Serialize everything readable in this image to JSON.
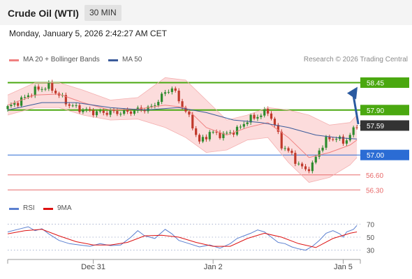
{
  "header": {
    "title": "Crude Oil (WTI)",
    "interval": "30 MIN",
    "datetime": "Monday, January 5, 2026 2:42:27 AM CET"
  },
  "credit": "Research © 2026 Trading Central",
  "colors": {
    "bollinger_line": "#f08080",
    "bollinger_fill": "#fcd6d6",
    "ma50": "#3a5b9a",
    "resistance": "#4aa810",
    "support_blue": "#2b6cd4",
    "support_red": "#e86a6a",
    "current": "#333333",
    "candle_up": "#2e8b2e",
    "candle_down": "#c0392b",
    "arrow": "#2a5aa0",
    "rsi": "#5a7fd0",
    "rsi_ma": "#dd1111"
  },
  "chart_data": [
    {
      "type": "candlestick",
      "legend": [
        {
          "name": "MA 20 + Bollinger Bands",
          "color": "#f08080"
        },
        {
          "name": "MA 50",
          "color": "#3a5b9a"
        }
      ],
      "ylim": [
        56.15,
        58.75
      ],
      "levels": [
        {
          "value": 58.45,
          "label": "58.45",
          "kind": "resistance"
        },
        {
          "value": 57.9,
          "label": "57.90",
          "kind": "resistance"
        },
        {
          "value": 57.59,
          "label": "57.59",
          "kind": "current"
        },
        {
          "value": 57.0,
          "label": "57.00",
          "kind": "support_blue"
        },
        {
          "value": 56.6,
          "label": "56.60",
          "kind": "support_red"
        },
        {
          "value": 56.3,
          "label": "56.30",
          "kind": "support_red"
        }
      ],
      "x_labels": [
        "Dec 31",
        "Jan 2",
        "Jan 5"
      ],
      "x_label_index": [
        25,
        60,
        98
      ],
      "close_path": [
        [
          0,
          57.95
        ],
        [
          4,
          58.1
        ],
        [
          8,
          58.3
        ],
        [
          12,
          58.38
        ],
        [
          15,
          58.2
        ],
        [
          18,
          58.0
        ],
        [
          22,
          57.9
        ],
        [
          26,
          57.85
        ],
        [
          30,
          57.86
        ],
        [
          34,
          57.85
        ],
        [
          38,
          57.9
        ],
        [
          42,
          57.95
        ],
        [
          46,
          58.25
        ],
        [
          48,
          58.35
        ],
        [
          50,
          58.1
        ],
        [
          53,
          57.75
        ],
        [
          56,
          57.25
        ],
        [
          59,
          57.45
        ],
        [
          63,
          57.4
        ],
        [
          67,
          57.5
        ],
        [
          70,
          57.7
        ],
        [
          73,
          57.78
        ],
        [
          76,
          57.88
        ],
        [
          78,
          57.6
        ],
        [
          80,
          57.2
        ],
        [
          83,
          57.0
        ],
        [
          85,
          56.8
        ],
        [
          87,
          56.7
        ],
        [
          89,
          56.8
        ],
        [
          91,
          57.1
        ],
        [
          93,
          57.3
        ],
        [
          96,
          57.35
        ],
        [
          98,
          57.25
        ],
        [
          100,
          57.4
        ],
        [
          102,
          57.59
        ]
      ],
      "ma20": [
        [
          0,
          58.0
        ],
        [
          8,
          58.2
        ],
        [
          15,
          58.22
        ],
        [
          22,
          58.05
        ],
        [
          30,
          57.9
        ],
        [
          38,
          57.92
        ],
        [
          46,
          58.0
        ],
        [
          52,
          57.95
        ],
        [
          58,
          57.55
        ],
        [
          64,
          57.4
        ],
        [
          70,
          57.55
        ],
        [
          76,
          57.65
        ],
        [
          82,
          57.35
        ],
        [
          88,
          56.95
        ],
        [
          94,
          57.05
        ],
        [
          100,
          57.2
        ],
        [
          102,
          57.3
        ]
      ],
      "bollinger_upper": [
        [
          0,
          58.2
        ],
        [
          8,
          58.45
        ],
        [
          15,
          58.45
        ],
        [
          22,
          58.3
        ],
        [
          30,
          58.1
        ],
        [
          38,
          58.15
        ],
        [
          46,
          58.55
        ],
        [
          52,
          58.5
        ],
        [
          58,
          58.1
        ],
        [
          64,
          57.7
        ],
        [
          70,
          57.8
        ],
        [
          76,
          57.95
        ],
        [
          82,
          57.9
        ],
        [
          88,
          57.8
        ],
        [
          94,
          57.6
        ],
        [
          100,
          57.65
        ],
        [
          102,
          57.8
        ]
      ],
      "bollinger_lower": [
        [
          0,
          57.8
        ],
        [
          8,
          57.95
        ],
        [
          15,
          57.95
        ],
        [
          22,
          57.8
        ],
        [
          30,
          57.7
        ],
        [
          38,
          57.72
        ],
        [
          46,
          57.55
        ],
        [
          52,
          57.35
        ],
        [
          58,
          57.05
        ],
        [
          64,
          57.1
        ],
        [
          70,
          57.3
        ],
        [
          76,
          57.35
        ],
        [
          82,
          56.85
        ],
        [
          88,
          56.45
        ],
        [
          94,
          56.55
        ],
        [
          100,
          56.8
        ],
        [
          102,
          56.95
        ]
      ],
      "ma50": [
        [
          0,
          57.9
        ],
        [
          10,
          58.05
        ],
        [
          20,
          58.05
        ],
        [
          30,
          57.95
        ],
        [
          40,
          57.9
        ],
        [
          50,
          57.95
        ],
        [
          58,
          57.85
        ],
        [
          66,
          57.7
        ],
        [
          74,
          57.65
        ],
        [
          82,
          57.55
        ],
        [
          90,
          57.4
        ],
        [
          96,
          57.35
        ],
        [
          102,
          57.32
        ]
      ]
    },
    {
      "type": "line",
      "legend": [
        {
          "name": "RSI",
          "color": "#5a7fd0"
        },
        {
          "name": "9MA",
          "color": "#dd1111"
        }
      ],
      "ylim": [
        20,
        80
      ],
      "ticks": [
        70,
        50,
        30
      ],
      "rsi": [
        [
          0,
          58
        ],
        [
          3,
          62
        ],
        [
          6,
          66
        ],
        [
          8,
          60
        ],
        [
          10,
          63
        ],
        [
          12,
          55
        ],
        [
          15,
          45
        ],
        [
          18,
          40
        ],
        [
          21,
          38
        ],
        [
          24,
          36
        ],
        [
          27,
          40
        ],
        [
          30,
          37
        ],
        [
          33,
          38
        ],
        [
          36,
          50
        ],
        [
          38,
          60
        ],
        [
          40,
          52
        ],
        [
          43,
          48
        ],
        [
          46,
          62
        ],
        [
          48,
          55
        ],
        [
          50,
          45
        ],
        [
          53,
          40
        ],
        [
          56,
          35
        ],
        [
          59,
          38
        ],
        [
          62,
          33
        ],
        [
          65,
          40
        ],
        [
          67,
          48
        ],
        [
          69,
          52
        ],
        [
          71,
          56
        ],
        [
          73,
          61
        ],
        [
          75,
          58
        ],
        [
          77,
          50
        ],
        [
          79,
          42
        ],
        [
          81,
          40
        ],
        [
          83,
          35
        ],
        [
          85,
          32
        ],
        [
          87,
          30
        ],
        [
          89,
          36
        ],
        [
          91,
          45
        ],
        [
          93,
          56
        ],
        [
          95,
          60
        ],
        [
          97,
          55
        ],
        [
          98,
          50
        ],
        [
          99,
          58
        ],
        [
          101,
          62
        ],
        [
          102,
          68
        ]
      ],
      "rsi_ma": [
        [
          0,
          55
        ],
        [
          5,
          60
        ],
        [
          10,
          62
        ],
        [
          15,
          52
        ],
        [
          20,
          43
        ],
        [
          25,
          38
        ],
        [
          30,
          38
        ],
        [
          35,
          42
        ],
        [
          40,
          52
        ],
        [
          45,
          53
        ],
        [
          50,
          50
        ],
        [
          55,
          42
        ],
        [
          60,
          36
        ],
        [
          65,
          36
        ],
        [
          70,
          48
        ],
        [
          75,
          56
        ],
        [
          80,
          50
        ],
        [
          85,
          40
        ],
        [
          90,
          34
        ],
        [
          95,
          48
        ],
        [
          100,
          56
        ],
        [
          102,
          58
        ]
      ]
    }
  ]
}
